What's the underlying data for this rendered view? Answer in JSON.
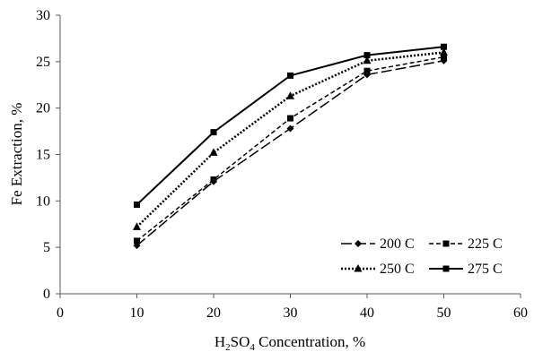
{
  "chart_data": {
    "type": "line",
    "title": "",
    "xlabel": {
      "prefix": "H",
      "sub1": "2",
      "mid": "SO",
      "sub2": "4",
      "suffix": " Concentration, %"
    },
    "ylabel": "Fe Extraction, %",
    "xlim": [
      0,
      60
    ],
    "ylim": [
      0,
      30
    ],
    "xticks": [
      0,
      10,
      20,
      30,
      40,
      50,
      60
    ],
    "yticks": [
      0,
      5,
      10,
      15,
      20,
      25,
      30
    ],
    "grid": false,
    "legend_position": "bottom-right",
    "x": [
      10,
      20,
      30,
      40,
      50
    ],
    "series": [
      {
        "name": "200 C",
        "values": [
          5.2,
          12.1,
          17.8,
          23.6,
          25.1
        ],
        "marker": "diamond",
        "dash": "long-dash",
        "color": "#000000"
      },
      {
        "name": "225 C",
        "values": [
          5.7,
          12.3,
          18.9,
          24.0,
          25.5
        ],
        "marker": "square",
        "dash": "short-dash",
        "color": "#000000"
      },
      {
        "name": "250 C",
        "values": [
          7.2,
          15.2,
          21.3,
          25.1,
          26.0
        ],
        "marker": "triangle",
        "dash": "dotted",
        "color": "#000000"
      },
      {
        "name": "275 C",
        "values": [
          9.6,
          17.4,
          23.5,
          25.7,
          26.6
        ],
        "marker": "square",
        "dash": "solid",
        "color": "#000000"
      }
    ]
  }
}
